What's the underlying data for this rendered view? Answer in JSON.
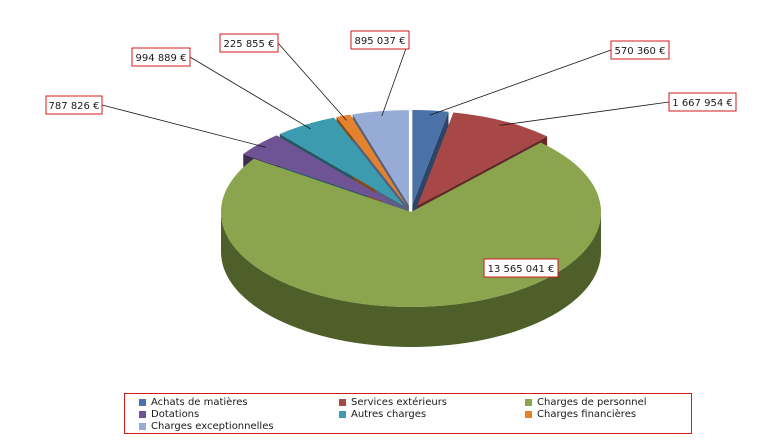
{
  "chart_data": {
    "type": "pie",
    "style": "3d-exploded",
    "title": "",
    "legend_position": "bottom",
    "slices": [
      {
        "name": "Achats de matières",
        "value": 570360,
        "label": "570 360 €",
        "color": "#4a72a8",
        "side_color": "#2c4466"
      },
      {
        "name": "Services extérieurs",
        "value": 1667954,
        "label": "1 667 954 €",
        "color": "#a84846",
        "side_color": "#66292a"
      },
      {
        "name": "Charges de personnel",
        "value": 13565041,
        "label": "13 565 041 €",
        "color": "#8aa54e",
        "side_color": "#4f5f2a"
      },
      {
        "name": "Dotations",
        "value": 787826,
        "label": "787 826 €",
        "color": "#6e5494",
        "side_color": "#3d2d55"
      },
      {
        "name": "Autres charges",
        "value": 994889,
        "label": "994 889 €",
        "color": "#3d9bb0",
        "side_color": "#225864"
      },
      {
        "name": "Charges financières",
        "value": 225855,
        "label": "225 855 €",
        "color": "#e5822e",
        "side_color": "#854a17"
      },
      {
        "name": "Charges exceptionnelles",
        "value": 895037,
        "label": "895 037 €",
        "color": "#96abd6",
        "side_color": "#55627d"
      }
    ]
  },
  "legend": {
    "items": [
      {
        "label": "Achats de matières"
      },
      {
        "label": "Services extérieurs"
      },
      {
        "label": "Charges de personnel"
      },
      {
        "label": "Dotations"
      },
      {
        "label": "Autres charges"
      },
      {
        "label": "Charges financières"
      },
      {
        "label": "Charges exceptionnelles"
      }
    ]
  }
}
